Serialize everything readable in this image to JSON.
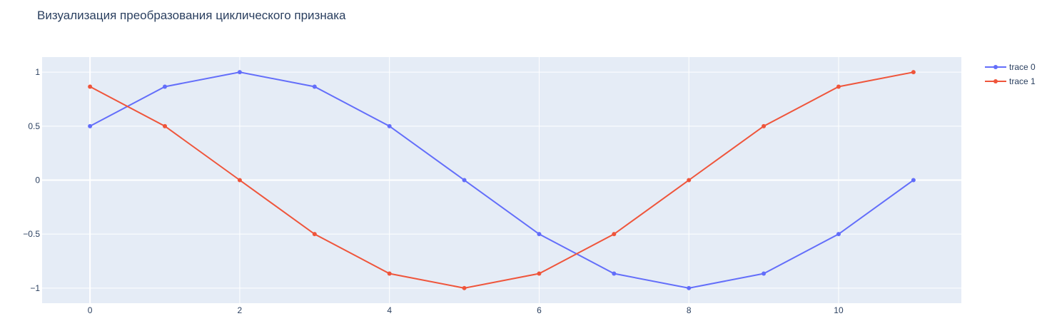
{
  "chart_data": {
    "type": "line",
    "title": "Визуализация преобразования циклического признака",
    "x": [
      0,
      1,
      2,
      3,
      4,
      5,
      6,
      7,
      8,
      9,
      10,
      11
    ],
    "series": [
      {
        "name": "trace 0",
        "color": "#636efa",
        "values": [
          0.5,
          0.866,
          1,
          0.866,
          0.5,
          0,
          -0.5,
          -0.866,
          -1,
          -0.866,
          -0.5,
          0
        ]
      },
      {
        "name": "trace 1",
        "color": "#ef553b",
        "values": [
          0.866,
          0.5,
          0,
          -0.5,
          -0.866,
          -1,
          -0.866,
          -0.5,
          0,
          0.5,
          0.866,
          1
        ]
      }
    ],
    "xlim": [
      -0.64,
      11.64
    ],
    "ylim": [
      -1.14,
      1.14
    ],
    "xticks": [
      0,
      2,
      4,
      6,
      8,
      10
    ],
    "yticks": [
      1,
      0.5,
      0,
      -0.5,
      -1
    ],
    "ytick_labels": [
      "1",
      "0.5",
      "0",
      "−0.5",
      "−1"
    ],
    "grid": true,
    "legend_position": "top-right",
    "colors": {
      "plot_bg": "#e5ecf6",
      "grid": "#ffffff",
      "text": "#2a3f5f"
    }
  }
}
